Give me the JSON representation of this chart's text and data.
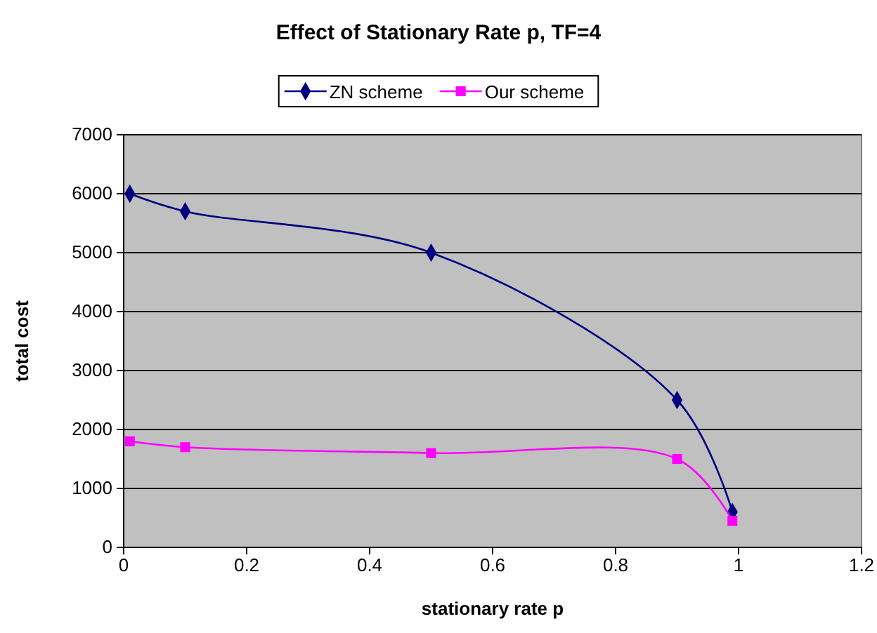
{
  "chart_data": {
    "type": "line",
    "title": "Effect of Stationary Rate p, TF=4",
    "xlabel": "stationary rate p",
    "ylabel": "total cost",
    "xlim": [
      0,
      1.2
    ],
    "xticks": [
      0,
      0.2,
      0.4,
      0.6,
      0.8,
      1,
      1.2
    ],
    "ylim": [
      0,
      7000
    ],
    "yticks": [
      0,
      1000,
      2000,
      3000,
      4000,
      5000,
      6000,
      7000
    ],
    "grid": "y",
    "legend": "top",
    "line_style": "solid",
    "series": [
      {
        "name": "ZN scheme",
        "color": "#000080",
        "marker": "diamond",
        "x": [
          0.01,
          0.1,
          0.5,
          0.9,
          0.99
        ],
        "values": [
          6000,
          5700,
          5000,
          2500,
          600
        ]
      },
      {
        "name": "Our scheme",
        "color": "#ff00ff",
        "marker": "square",
        "x": [
          0.01,
          0.1,
          0.5,
          0.9,
          0.99
        ],
        "values": [
          1800,
          1700,
          1600,
          1500,
          450
        ]
      }
    ]
  }
}
